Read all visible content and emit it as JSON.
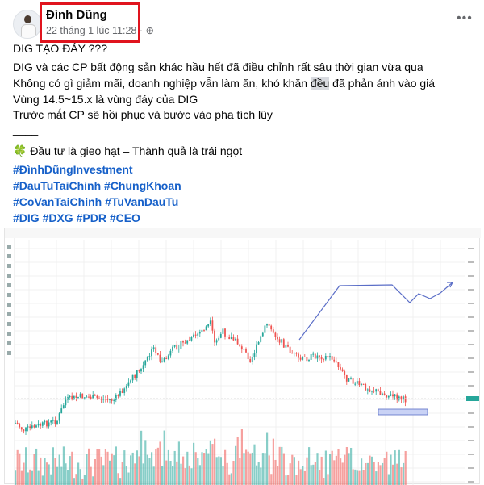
{
  "post": {
    "author": "Đình Dũng",
    "timestamp": "22 tháng 1 lúc 11:28 ·",
    "privacy_icon": "globe-icon",
    "more_label": "•••",
    "lines": [
      "DIG TẠO ĐÁY ???",
      "DIG và các CP bất động sản khác hầu hết đã điều chỉnh rất sâu thời gian vừa qua",
      "Vùng 14.5~15.x là vùng đáy của DIG",
      "Trước mắt CP sẽ hồi phục và bước vào pha tích lũy",
      "____",
      "🍀 Đầu tư là gieo hạt – Thành quả là trái ngọt"
    ],
    "line3": {
      "before": "Không có gì giảm mãi, doanh nghiệp vẫn làm ăn, khó khăn ",
      "highlight": "đều",
      "after": " đã phản ánh vào giá"
    },
    "hashtags": [
      "#ĐìnhDũngInvestment",
      "#DauTuTaiChinh #ChungKhoan",
      "#CoVanTaiChinh #TuVanDauTu",
      "#DIG #DXG #PDR #CEO"
    ]
  },
  "colors": {
    "up": "#26a69a",
    "down": "#ef5350",
    "drawing": "#5b6ec7",
    "hashtag": "#1660c9",
    "highlight_box": "#e0141e"
  }
}
